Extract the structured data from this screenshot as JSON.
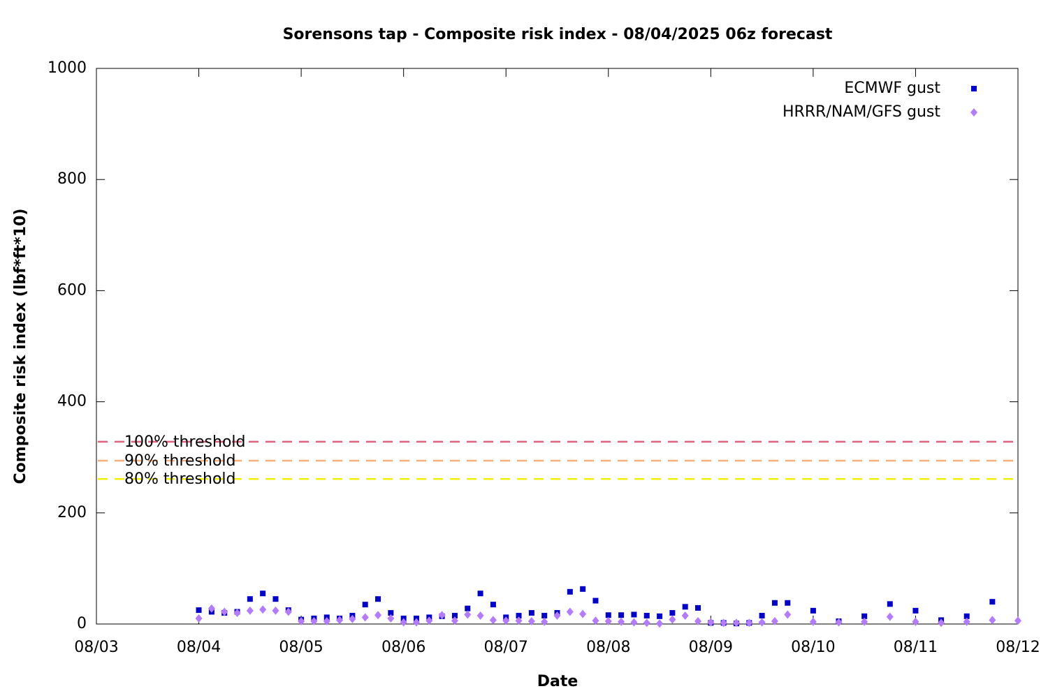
{
  "chart_data": {
    "type": "scatter",
    "title": "Sorensons tap - Composite risk index - 08/04/2025 06z forecast",
    "xlabel": "Date",
    "ylabel": "Composite risk index (lbf*ft*10)",
    "x": [
      4.0,
      4.125,
      4.25,
      4.375,
      4.5,
      4.625,
      4.75,
      4.875,
      5.0,
      5.125,
      5.25,
      5.375,
      5.5,
      5.625,
      5.75,
      5.875,
      6.0,
      6.125,
      6.25,
      6.375,
      6.5,
      6.625,
      6.75,
      6.875,
      7.0,
      7.125,
      7.25,
      7.375,
      7.5,
      7.625,
      7.75,
      7.875,
      8.0,
      8.125,
      8.25,
      8.375,
      8.5,
      8.625,
      8.75,
      8.875,
      9.0,
      9.125,
      9.25,
      9.375,
      9.5,
      9.625,
      9.75,
      10.0,
      10.25,
      10.5,
      10.75,
      11.0,
      11.25,
      11.5,
      11.75,
      12.0
    ],
    "series": [
      {
        "name": "ECMWF gust",
        "color": "#0000cc",
        "marker": "square",
        "values": [
          25,
          22,
          20,
          22,
          45,
          55,
          45,
          25,
          8,
          10,
          12,
          10,
          15,
          35,
          45,
          20,
          10,
          10,
          12,
          14,
          15,
          28,
          55,
          35,
          12,
          15,
          20,
          15,
          20,
          58,
          63,
          42,
          16,
          16,
          17,
          15,
          14,
          20,
          31,
          29,
          2,
          2,
          1,
          2,
          15,
          38,
          38,
          24,
          5,
          14,
          36,
          24,
          7,
          14,
          40,
          null
        ]
      },
      {
        "name": "HRRR/NAM/GFS gust",
        "color": "#b57bff",
        "marker": "diamond",
        "values": [
          10,
          28,
          22,
          20,
          24,
          26,
          24,
          22,
          5,
          5,
          5,
          7,
          9,
          12,
          16,
          10,
          3,
          3,
          6,
          16,
          6,
          17,
          15,
          7,
          6,
          6,
          5,
          4,
          15,
          22,
          18,
          6,
          5,
          4,
          3,
          2,
          1,
          8,
          15,
          5,
          3,
          2,
          2,
          2,
          3,
          5,
          17,
          4,
          3,
          4,
          13,
          4,
          2,
          4,
          7,
          6
        ]
      }
    ],
    "thresholds": [
      {
        "label": "100% threshold",
        "value": 328,
        "color": "#e0607e"
      },
      {
        "label": "90% threshold",
        "value": 294,
        "color": "#f5b07a"
      },
      {
        "label": "80% threshold",
        "value": 261,
        "color": "#f0f000"
      }
    ],
    "xlim": [
      3,
      12
    ],
    "xticks": [
      {
        "value": 3,
        "label": "08/03"
      },
      {
        "value": 4,
        "label": "08/04"
      },
      {
        "value": 5,
        "label": "08/05"
      },
      {
        "value": 6,
        "label": "08/06"
      },
      {
        "value": 7,
        "label": "08/07"
      },
      {
        "value": 8,
        "label": "08/08"
      },
      {
        "value": 9,
        "label": "08/09"
      },
      {
        "value": 10,
        "label": "08/10"
      },
      {
        "value": 11,
        "label": "08/11"
      },
      {
        "value": 12,
        "label": "08/12"
      }
    ],
    "ylim": [
      0,
      1000
    ],
    "yticks": [
      0,
      200,
      400,
      600,
      800,
      1000
    ],
    "legend": "top-right"
  }
}
